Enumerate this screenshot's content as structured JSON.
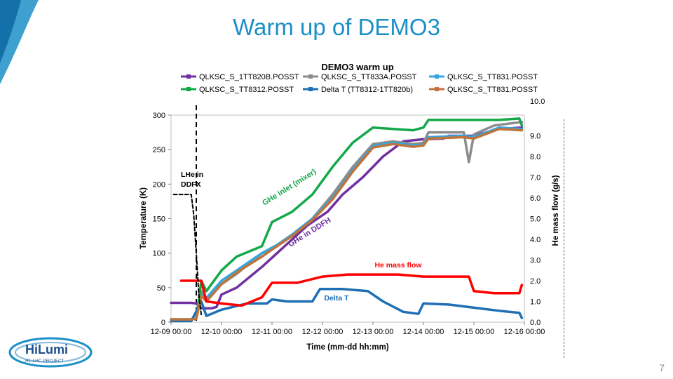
{
  "slide": {
    "title": "Warm up of DEMO3",
    "page_number": "7",
    "logo_text": "HiLumi",
    "logo_subtext": "HL-LHC PROJECT"
  },
  "colors": {
    "title": "#1b8fc7",
    "purple": "#7030a0",
    "grey": "#8c8c8c",
    "lightblue": "#33a7e0",
    "green": "#14a84a",
    "blue": "#1f6fb5",
    "orange": "#c0733a",
    "red": "#ff0000"
  },
  "chart_data": {
    "type": "line",
    "title": "DEMO3 warm up",
    "xlabel": "Time (mm-dd hh:mm)",
    "ylabel": "Temperature (K)",
    "y2label": "He mass flow (g/s)",
    "xlim": [
      0,
      7
    ],
    "ylim": [
      0,
      300
    ],
    "y2lim": [
      0,
      10
    ],
    "x_ticks": [
      "12-09 00:00",
      "12-10 00:00",
      "12-11 00:00",
      "12-12 00:00",
      "12-13 00:00",
      "12-14 00:00",
      "12-15 00:00",
      "12-16 00:00"
    ],
    "y_ticks": [
      "0",
      "50",
      "100",
      "150",
      "200",
      "250",
      "300"
    ],
    "y2_ticks": [
      "0.0",
      "1.0",
      "2.0",
      "3.0",
      "4.0",
      "5.0",
      "6.0",
      "7.0",
      "8.0",
      "9.0",
      "10.0"
    ],
    "legend_position": "top",
    "series": [
      {
        "name": "QLKSC_S_1TT820B.POSST",
        "color": "#7030a0",
        "axis": "left",
        "points": [
          [
            0,
            28
          ],
          [
            0.4,
            28
          ],
          [
            0.5,
            27
          ],
          [
            0.6,
            20
          ],
          [
            0.8,
            20
          ],
          [
            0.9,
            22
          ],
          [
            1.0,
            40
          ],
          [
            1.3,
            50
          ],
          [
            1.8,
            80
          ],
          [
            2.1,
            100
          ],
          [
            2.4,
            120
          ],
          [
            2.7,
            140
          ],
          [
            3.1,
            160
          ],
          [
            3.4,
            185
          ],
          [
            3.8,
            210
          ],
          [
            4.2,
            240
          ],
          [
            4.6,
            262
          ],
          [
            5.0,
            265
          ],
          [
            5.4,
            266
          ],
          [
            5.5,
            270
          ],
          [
            6.0,
            270
          ],
          [
            6.5,
            280
          ],
          [
            6.95,
            282
          ]
        ]
      },
      {
        "name": "QLKSC_S_TT833A.POSST",
        "color": "#8c8c8c",
        "axis": "left",
        "points": [
          [
            0,
            4
          ],
          [
            0.4,
            4
          ],
          [
            0.5,
            5
          ],
          [
            0.6,
            45
          ],
          [
            0.7,
            30
          ],
          [
            1.0,
            55
          ],
          [
            1.3,
            70
          ],
          [
            1.8,
            100
          ],
          [
            2.1,
            110
          ],
          [
            2.4,
            125
          ],
          [
            2.8,
            150
          ],
          [
            3.2,
            185
          ],
          [
            3.6,
            225
          ],
          [
            4.0,
            258
          ],
          [
            4.4,
            262
          ],
          [
            4.8,
            258
          ],
          [
            5.0,
            260
          ],
          [
            5.1,
            275
          ],
          [
            5.4,
            275
          ],
          [
            5.8,
            275
          ],
          [
            5.9,
            232
          ],
          [
            6.0,
            272
          ],
          [
            6.4,
            285
          ],
          [
            6.95,
            290
          ]
        ]
      },
      {
        "name": "QLKSC_S_TT831.POSST",
        "color": "#33a7e0",
        "axis": "left",
        "points": [
          [
            0,
            4
          ],
          [
            0.4,
            4
          ],
          [
            0.5,
            5
          ],
          [
            0.6,
            40
          ],
          [
            0.7,
            35
          ],
          [
            1.0,
            60
          ],
          [
            1.3,
            75
          ],
          [
            1.8,
            100
          ],
          [
            2.1,
            112
          ],
          [
            2.4,
            127
          ],
          [
            2.8,
            150
          ],
          [
            3.2,
            180
          ],
          [
            3.6,
            220
          ],
          [
            4.0,
            255
          ],
          [
            4.4,
            260
          ],
          [
            4.8,
            256
          ],
          [
            5.0,
            257
          ],
          [
            5.1,
            268
          ],
          [
            5.8,
            270
          ],
          [
            6.0,
            268
          ],
          [
            6.5,
            282
          ],
          [
            6.95,
            280
          ]
        ]
      },
      {
        "name": "QLKSC_S_TT8312.POSST",
        "color": "#14a84a",
        "axis": "left",
        "points": [
          [
            0,
            4
          ],
          [
            0.4,
            4
          ],
          [
            0.5,
            5
          ],
          [
            0.6,
            60
          ],
          [
            0.7,
            45
          ],
          [
            1.0,
            75
          ],
          [
            1.3,
            95
          ],
          [
            1.8,
            110
          ],
          [
            2.0,
            145
          ],
          [
            2.4,
            160
          ],
          [
            2.8,
            185
          ],
          [
            3.2,
            225
          ],
          [
            3.6,
            260
          ],
          [
            4.0,
            282
          ],
          [
            4.4,
            280
          ],
          [
            4.8,
            278
          ],
          [
            5.0,
            282
          ],
          [
            5.1,
            293
          ],
          [
            5.8,
            293
          ],
          [
            6.5,
            293
          ],
          [
            6.9,
            295
          ],
          [
            6.95,
            285
          ]
        ]
      },
      {
        "name": "Delta T (TT8312-1TT820b)",
        "color": "#1f6fb5",
        "axis": "right",
        "points": [
          [
            0,
            0.05
          ],
          [
            0.4,
            0.05
          ],
          [
            0.6,
            1.0
          ],
          [
            0.7,
            0.3
          ],
          [
            1.0,
            0.6
          ],
          [
            1.5,
            0.9
          ],
          [
            1.9,
            0.9
          ],
          [
            2.0,
            1.1
          ],
          [
            2.3,
            1.0
          ],
          [
            2.8,
            1.0
          ],
          [
            2.95,
            1.6
          ],
          [
            3.4,
            1.6
          ],
          [
            3.9,
            1.5
          ],
          [
            4.2,
            1.0
          ],
          [
            4.6,
            0.5
          ],
          [
            4.9,
            0.4
          ],
          [
            5.0,
            0.9
          ],
          [
            5.5,
            0.85
          ],
          [
            6.0,
            0.7
          ],
          [
            6.5,
            0.55
          ],
          [
            6.9,
            0.45
          ],
          [
            6.95,
            0.2
          ]
        ]
      },
      {
        "name": "QLKSC_S_TT831.POSST",
        "color": "#c0733a",
        "axis": "left",
        "points": [
          [
            0,
            4
          ],
          [
            0.4,
            4
          ],
          [
            0.5,
            5
          ],
          [
            0.6,
            38
          ],
          [
            0.7,
            30
          ],
          [
            1.0,
            55
          ],
          [
            1.3,
            72
          ],
          [
            1.8,
            95
          ],
          [
            2.1,
            110
          ],
          [
            2.4,
            125
          ],
          [
            2.8,
            148
          ],
          [
            3.2,
            178
          ],
          [
            3.6,
            218
          ],
          [
            4.0,
            253
          ],
          [
            4.4,
            258
          ],
          [
            4.8,
            254
          ],
          [
            5.0,
            256
          ],
          [
            5.1,
            266
          ],
          [
            5.8,
            268
          ],
          [
            6.0,
            266
          ],
          [
            6.5,
            280
          ],
          [
            6.95,
            278
          ]
        ]
      },
      {
        "name": "He mass flow",
        "color": "#ff0000",
        "axis": "right",
        "legend": false,
        "points": [
          [
            0.2,
            2.0
          ],
          [
            0.6,
            2.0
          ],
          [
            0.7,
            1.0
          ],
          [
            1.0,
            0.9
          ],
          [
            1.4,
            0.8
          ],
          [
            1.8,
            1.2
          ],
          [
            2.0,
            1.9
          ],
          [
            2.5,
            1.9
          ],
          [
            3.0,
            2.2
          ],
          [
            3.5,
            2.3
          ],
          [
            4.0,
            2.3
          ],
          [
            4.5,
            2.3
          ],
          [
            5.0,
            2.2
          ],
          [
            5.5,
            2.2
          ],
          [
            5.9,
            2.2
          ],
          [
            6.0,
            1.5
          ],
          [
            6.4,
            1.4
          ],
          [
            6.9,
            1.4
          ],
          [
            6.95,
            1.8
          ]
        ]
      },
      {
        "name": "",
        "color": "#000000",
        "axis": "left",
        "dashed": true,
        "legend": false,
        "points": [
          [
            0.05,
            185
          ],
          [
            0.35,
            185
          ],
          [
            0.4,
            185
          ],
          [
            0.45,
            155
          ],
          [
            0.5,
            100
          ],
          [
            0.55,
            40
          ],
          [
            0.6,
            10
          ]
        ]
      }
    ],
    "vline_x": 0.5,
    "annotations": [
      {
        "text": "LHe in DDFX",
        "color": "#000000"
      },
      {
        "text": "GHe inlet (mixer)",
        "color": "#14a84a"
      },
      {
        "text": "GHe in DDFH",
        "color": "#7030a0"
      },
      {
        "text": "He mass flow",
        "color": "#ff0000"
      },
      {
        "text": "Delta T",
        "color": "#1f6fb5"
      }
    ]
  }
}
